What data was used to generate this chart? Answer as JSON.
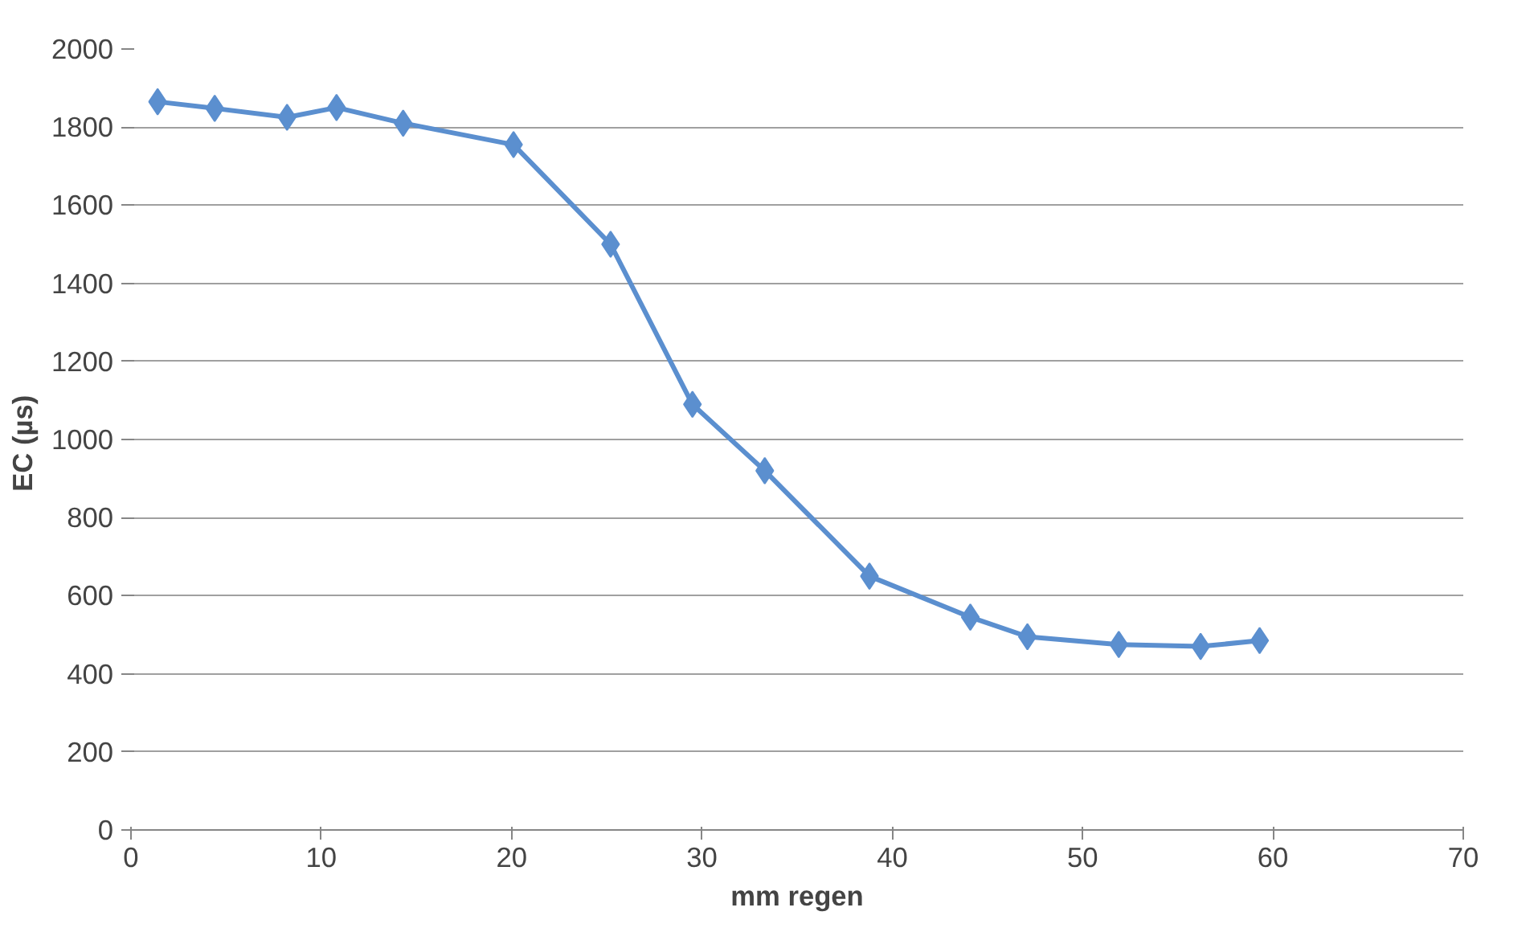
{
  "chart_data": {
    "type": "line",
    "xlabel": "mm regen",
    "ylabel": "EC  (µs)",
    "x": [
      1.4,
      4.4,
      8.2,
      10.8,
      14.3,
      20.1,
      25.2,
      29.5,
      33.3,
      38.8,
      44.1,
      47.1,
      51.9,
      56.2,
      59.3
    ],
    "series": [
      {
        "color": "#5b8fcf",
        "values": [
          1865,
          1848,
          1825,
          1850,
          1810,
          1755,
          1500,
          1090,
          920,
          650,
          545,
          495,
          475,
          470,
          485
        ]
      }
    ],
    "xlim": [
      0,
      70
    ],
    "xticks": [
      0,
      10,
      20,
      30,
      40,
      50,
      60,
      70
    ],
    "ylim": [
      0,
      2000
    ],
    "yticks": [
      0,
      200,
      400,
      600,
      800,
      1000,
      1200,
      1400,
      1600,
      1800,
      2000
    ],
    "grid": "y",
    "marker": "diamond",
    "line_style": "solid"
  }
}
